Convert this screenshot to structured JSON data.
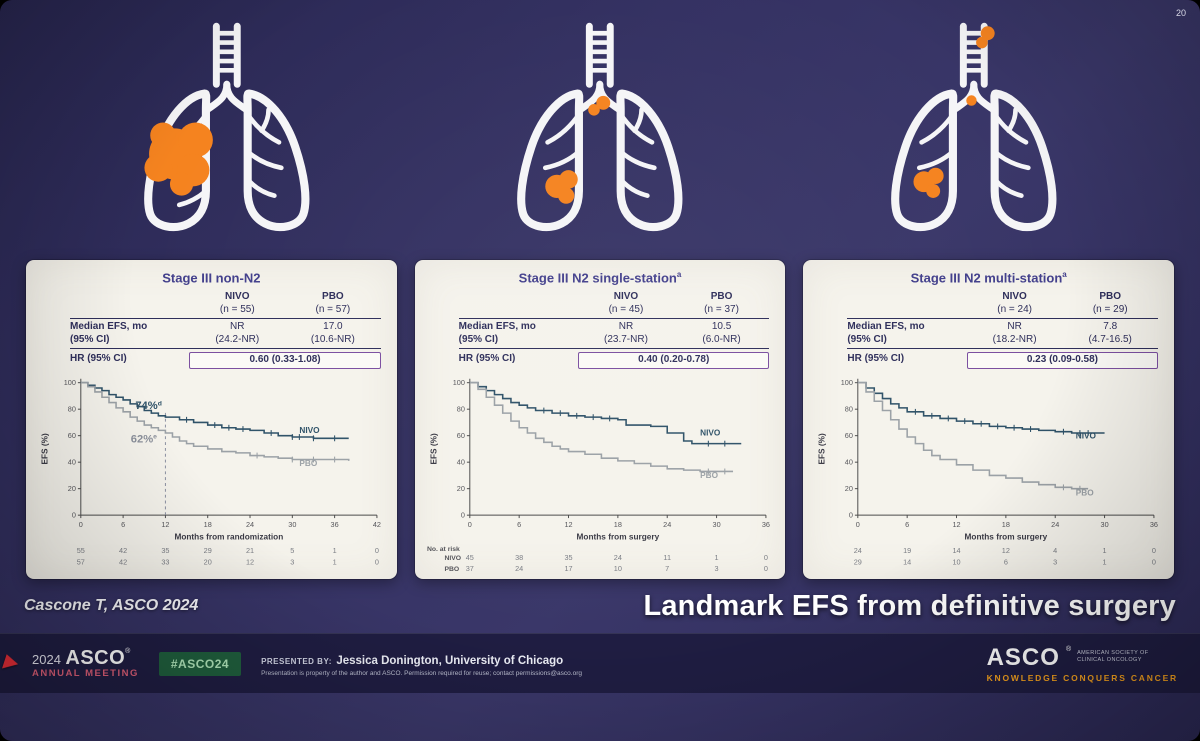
{
  "slide": {
    "number": "20",
    "citation": "Cascone T, ASCO 2024",
    "headline": "Landmark EFS from definitive surgery"
  },
  "colors": {
    "nivo": "#2f5268",
    "pbo": "#9ba1a6",
    "annotation_gray": "#8b909b",
    "hr_box_purple": "#7b4fa0",
    "tumor_orange": "#f5831f",
    "slide_navy": "#312f60",
    "footer_navy": "#1f1d42",
    "hashtag_green_bg": "#1f5e3d",
    "hashtag_green_text": "#aee3b8",
    "asco_tagline_orange": "#f6a21d"
  },
  "panels": [
    {
      "title": "Stage III non-N2",
      "title_sup": "",
      "icon": "lungs-large-tumor-icon",
      "stats": {
        "col1": "NIVO",
        "col2": "PBO",
        "n1": "(n = 55)",
        "n2": "(n = 57)",
        "median_label1": "Median EFS, mo",
        "median_label2": "(95% CI)",
        "median1": "NR",
        "median2": "17.0",
        "ci1": "(24.2-NR)",
        "ci2": "(10.6-NR)",
        "hr_label": "HR (95% CI)",
        "hr_value": "0.60 (0.33-1.08)"
      }
    },
    {
      "title": "Stage III N2 single-station",
      "title_sup": "a",
      "icon": "lungs-small-tumor-hilar-node-icon",
      "stats": {
        "col1": "NIVO",
        "col2": "PBO",
        "n1": "(n = 45)",
        "n2": "(n = 37)",
        "median_label1": "Median EFS, mo",
        "median_label2": "(95% CI)",
        "median1": "NR",
        "median2": "10.5",
        "ci1": "(23.7-NR)",
        "ci2": "(6.0-NR)",
        "hr_label": "HR (95% CI)",
        "hr_value": "0.40 (0.20-0.78)"
      }
    },
    {
      "title": "Stage III N2 multi-station",
      "title_sup": "a",
      "icon": "lungs-small-tumor-mediastinal-nodes-icon",
      "stats": {
        "col1": "NIVO",
        "col2": "PBO",
        "n1": "(n = 24)",
        "n2": "(n = 29)",
        "median_label1": "Median EFS, mo",
        "median_label2": "(95% CI)",
        "median1": "NR",
        "median2": "7.8",
        "ci1": "(18.2-NR)",
        "ci2": "(4.7-16.5)",
        "hr_label": "HR (95% CI)",
        "hr_value": "0.23 (0.09-0.58)"
      }
    }
  ],
  "chart_data": [
    {
      "type": "line",
      "title": "Stage III non-N2",
      "ylabel": "EFS (%)",
      "xlabel": "Months from randomization",
      "ylim": [
        0,
        100
      ],
      "xmax": 42,
      "xticks": [
        0,
        6,
        12,
        18,
        24,
        30,
        36,
        42
      ],
      "landmark_x": 12,
      "annotations": [
        {
          "text": "74%",
          "sup": "d",
          "x": 11.5,
          "y": 80,
          "color_key": "nivo"
        },
        {
          "text": "62%",
          "sup": "e",
          "x": 10.8,
          "y": 55,
          "color_key": "annotation_gray"
        }
      ],
      "series": [
        {
          "name": "NIVO",
          "color_key": "nivo",
          "label_x": 31,
          "label_y": 62,
          "points": [
            [
              0,
              100
            ],
            [
              1,
              98
            ],
            [
              2,
              96
            ],
            [
              3,
              94
            ],
            [
              4,
              91
            ],
            [
              5,
              89
            ],
            [
              6,
              87
            ],
            [
              7,
              84
            ],
            [
              8,
              82
            ],
            [
              9,
              79
            ],
            [
              10,
              77
            ],
            [
              11,
              75
            ],
            [
              12,
              74
            ],
            [
              14,
              72
            ],
            [
              16,
              70
            ],
            [
              18,
              68
            ],
            [
              20,
              66
            ],
            [
              22,
              65
            ],
            [
              24,
              64
            ],
            [
              26,
              62
            ],
            [
              28,
              60
            ],
            [
              30,
              59
            ],
            [
              33,
              58
            ],
            [
              38,
              58
            ]
          ],
          "censors": [
            15,
            19,
            21,
            23,
            27,
            30,
            31,
            33,
            36
          ]
        },
        {
          "name": "PBO",
          "color_key": "pbo",
          "label_x": 31,
          "label_y": 37,
          "points": [
            [
              0,
              100
            ],
            [
              1,
              97
            ],
            [
              2,
              93
            ],
            [
              3,
              89
            ],
            [
              4,
              85
            ],
            [
              5,
              81
            ],
            [
              6,
              78
            ],
            [
              7,
              74
            ],
            [
              8,
              71
            ],
            [
              9,
              68
            ],
            [
              10,
              66
            ],
            [
              11,
              64
            ],
            [
              12,
              62
            ],
            [
              13,
              59
            ],
            [
              14,
              56
            ],
            [
              15,
              54
            ],
            [
              16,
              52
            ],
            [
              18,
              50
            ],
            [
              20,
              48
            ],
            [
              22,
              47
            ],
            [
              24,
              45
            ],
            [
              26,
              44
            ],
            [
              28,
              43
            ],
            [
              30,
              42
            ],
            [
              38,
              41
            ]
          ],
          "censors": [
            25,
            30,
            33,
            36
          ]
        }
      ],
      "at_risk": {
        "label": "",
        "rows": [
          {
            "name": "",
            "values": [
              55,
              42,
              35,
              29,
              21,
              5,
              1,
              0
            ]
          },
          {
            "name": "",
            "values": [
              57,
              42,
              33,
              20,
              12,
              3,
              1,
              0
            ]
          }
        ]
      }
    },
    {
      "type": "line",
      "title": "Stage III N2 single-station",
      "ylabel": "EFS (%)",
      "xlabel": "Months from surgery",
      "ylim": [
        0,
        100
      ],
      "xmax": 36,
      "xticks": [
        0,
        6,
        12,
        18,
        24,
        30,
        36
      ],
      "annotations": [],
      "series": [
        {
          "name": "NIVO",
          "color_key": "nivo",
          "label_x": 28,
          "label_y": 60,
          "points": [
            [
              0,
              100
            ],
            [
              1,
              97
            ],
            [
              2,
              94
            ],
            [
              3,
              91
            ],
            [
              4,
              88
            ],
            [
              5,
              85
            ],
            [
              6,
              83
            ],
            [
              7,
              81
            ],
            [
              8,
              79
            ],
            [
              10,
              77
            ],
            [
              12,
              75
            ],
            [
              14,
              74
            ],
            [
              16,
              73
            ],
            [
              18,
              72
            ],
            [
              19,
              68
            ],
            [
              22,
              67
            ],
            [
              24,
              62
            ],
            [
              26,
              56
            ],
            [
              27,
              54
            ],
            [
              33,
              54
            ]
          ],
          "censors": [
            9,
            11,
            13,
            15,
            17,
            29,
            31
          ]
        },
        {
          "name": "PBO",
          "color_key": "pbo",
          "label_x": 28,
          "label_y": 28,
          "points": [
            [
              0,
              100
            ],
            [
              1,
              95
            ],
            [
              2,
              89
            ],
            [
              3,
              83
            ],
            [
              4,
              77
            ],
            [
              5,
              71
            ],
            [
              6,
              66
            ],
            [
              7,
              62
            ],
            [
              8,
              58
            ],
            [
              9,
              55
            ],
            [
              10,
              52
            ],
            [
              11,
              50
            ],
            [
              12,
              48
            ],
            [
              14,
              46
            ],
            [
              16,
              43
            ],
            [
              18,
              41
            ],
            [
              20,
              39
            ],
            [
              22,
              37
            ],
            [
              24,
              35
            ],
            [
              26,
              34
            ],
            [
              28,
              33
            ],
            [
              32,
              33
            ]
          ],
          "censors": [
            29,
            31
          ]
        }
      ],
      "at_risk": {
        "label": "No. at risk",
        "rows": [
          {
            "name": "NIVO",
            "values": [
              45,
              38,
              35,
              24,
              11,
              1,
              0
            ]
          },
          {
            "name": "PBO",
            "values": [
              37,
              24,
              17,
              10,
              7,
              3,
              0
            ]
          }
        ]
      }
    },
    {
      "type": "line",
      "title": "Stage III N2 multi-station",
      "ylabel": "EFS (%)",
      "xlabel": "Months from surgery",
      "ylim": [
        0,
        100
      ],
      "xmax": 36,
      "xticks": [
        0,
        6,
        12,
        18,
        24,
        30,
        36
      ],
      "annotations": [],
      "series": [
        {
          "name": "NIVO",
          "color_key": "nivo",
          "label_x": 26.5,
          "label_y": 58,
          "points": [
            [
              0,
              100
            ],
            [
              1,
              96
            ],
            [
              2,
              92
            ],
            [
              3,
              88
            ],
            [
              4,
              84
            ],
            [
              5,
              81
            ],
            [
              6,
              78
            ],
            [
              8,
              75
            ],
            [
              10,
              73
            ],
            [
              12,
              71
            ],
            [
              14,
              69
            ],
            [
              16,
              67
            ],
            [
              18,
              66
            ],
            [
              20,
              65
            ],
            [
              22,
              64
            ],
            [
              24,
              63
            ],
            [
              26,
              62
            ],
            [
              30,
              62
            ]
          ],
          "censors": [
            7,
            9,
            11,
            13,
            15,
            17,
            19,
            21,
            25,
            27,
            28
          ]
        },
        {
          "name": "PBO",
          "color_key": "pbo",
          "label_x": 26.5,
          "label_y": 15,
          "points": [
            [
              0,
              100
            ],
            [
              1,
              93
            ],
            [
              2,
              86
            ],
            [
              3,
              79
            ],
            [
              4,
              72
            ],
            [
              5,
              65
            ],
            [
              6,
              59
            ],
            [
              7,
              54
            ],
            [
              8,
              49
            ],
            [
              9,
              45
            ],
            [
              10,
              42
            ],
            [
              12,
              38
            ],
            [
              14,
              34
            ],
            [
              16,
              30
            ],
            [
              18,
              28
            ],
            [
              20,
              25
            ],
            [
              22,
              23
            ],
            [
              24,
              21
            ],
            [
              26,
              20
            ],
            [
              28,
              20
            ]
          ],
          "censors": [
            25,
            27
          ]
        }
      ],
      "at_risk": {
        "label": "",
        "rows": [
          {
            "name": "",
            "values": [
              24,
              19,
              14,
              12,
              4,
              1,
              0
            ]
          },
          {
            "name": "",
            "values": [
              29,
              14,
              10,
              6,
              3,
              1,
              0
            ]
          }
        ]
      }
    }
  ],
  "footer": {
    "logo_year": "2024",
    "logo_name": "ASCO",
    "logo_sub": "ANNUAL MEETING",
    "hashtag": "#ASCO24",
    "presented_by_label": "PRESENTED BY:",
    "presenter": "Jessica Donington, University of Chicago",
    "disclaimer": "Presentation is property of the author and ASCO. Permission required for reuse; contact permissions@asco.org",
    "asco_logo": "ASCO",
    "asco_society_line1": "AMERICAN SOCIETY OF",
    "asco_society_line2": "CLINICAL ONCOLOGY",
    "asco_tagline": "KNOWLEDGE CONQUERS CANCER"
  }
}
